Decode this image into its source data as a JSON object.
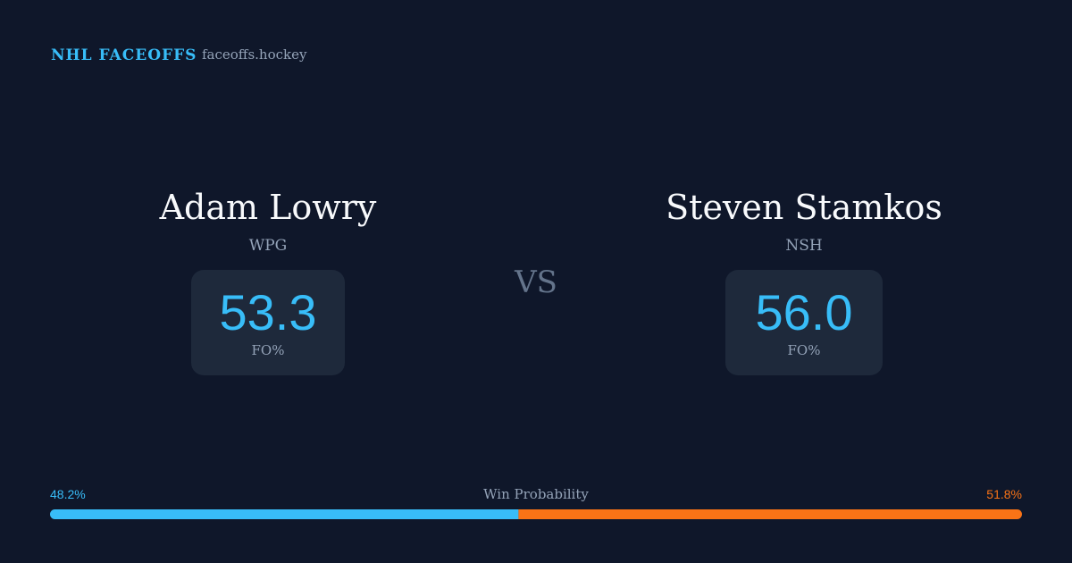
{
  "header": {
    "brand": "NHL FACEOFFS",
    "site": "faceoffs.hockey"
  },
  "players": [
    {
      "name": "Adam Lowry",
      "team": "WPG",
      "stat": "53.3",
      "stat_label": "FO%"
    },
    {
      "name": "Steven Stamkos",
      "team": "NSH",
      "stat": "56.0",
      "stat_label": "FO%"
    }
  ],
  "versus": "VS",
  "win_probability": {
    "label": "Win Probability",
    "values": [
      48.2,
      51.8
    ],
    "value_labels": [
      "48.2%",
      "51.8%"
    ],
    "colors": [
      "#38bdf8",
      "#f97316"
    ]
  }
}
